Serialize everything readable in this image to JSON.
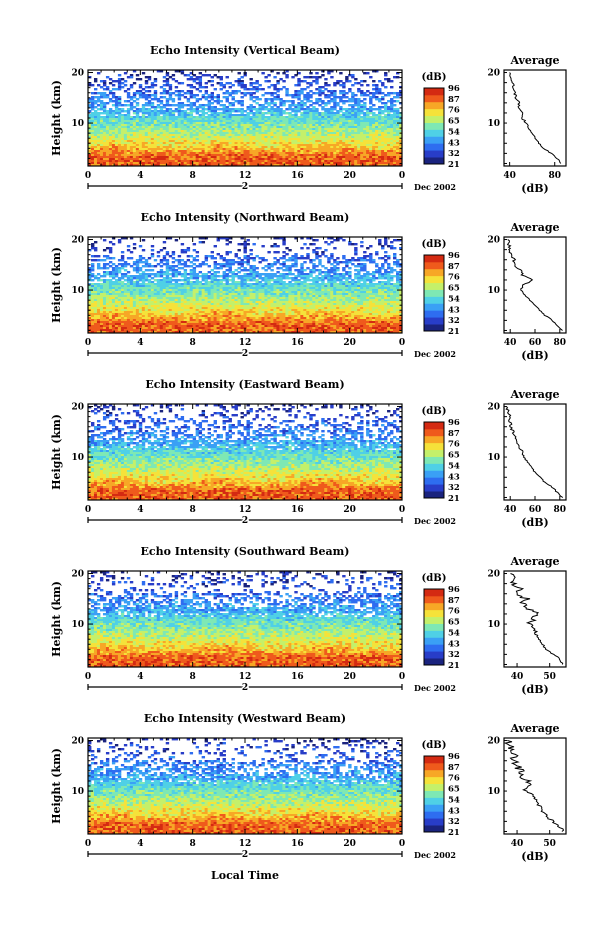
{
  "figure": {
    "xlabel": "Local Time",
    "date_label": "Dec 2002",
    "colorbar_unit": "(dB)",
    "colorbar_ticks": [
      "96",
      "87",
      "76",
      "65",
      "54",
      "43",
      "32",
      "21"
    ],
    "avg_title": "Average",
    "avg_xlabel": "(dB)",
    "ylabel": "Height (km)",
    "day_marker": "2",
    "colormap": [
      "#1a237e",
      "#283dc8",
      "#2e6df0",
      "#3aa0f5",
      "#4fd0e6",
      "#7ee8b4",
      "#c4f06a",
      "#f5e23a",
      "#f7a726",
      "#ef5a1c",
      "#d42a12"
    ]
  },
  "chart_data": [
    {
      "type": "heatmap",
      "title": "Echo Intensity (Vertical Beam)",
      "x_ticks": [
        "0",
        "4",
        "8",
        "12",
        "16",
        "20",
        "0"
      ],
      "xlim_hours": [
        0,
        24
      ],
      "y_ticks": [
        "20",
        "10"
      ],
      "ylim_km": [
        1.5,
        20.5
      ],
      "colorbar_range_db": [
        21,
        96
      ],
      "average_profile": {
        "title": "Average",
        "x_ticks": [
          "40",
          "80"
        ],
        "xlim_db": [
          35,
          90
        ],
        "y_ticks": [
          "20",
          "10"
        ],
        "points": [
          [
            2,
            86
          ],
          [
            3,
            82
          ],
          [
            4,
            77
          ],
          [
            5,
            70
          ],
          [
            6,
            66
          ],
          [
            7,
            63
          ],
          [
            8,
            60
          ],
          [
            9,
            57
          ],
          [
            10,
            55
          ],
          [
            11,
            51
          ],
          [
            12,
            52
          ],
          [
            13,
            48
          ],
          [
            14,
            48
          ],
          [
            15,
            46
          ],
          [
            16,
            44
          ],
          [
            17,
            44
          ],
          [
            18,
            42
          ],
          [
            19,
            41
          ],
          [
            20,
            40
          ]
        ]
      }
    },
    {
      "type": "heatmap",
      "title": "Echo Intensity (Northward Beam)",
      "x_ticks": [
        "0",
        "4",
        "8",
        "12",
        "16",
        "20",
        "0"
      ],
      "xlim_hours": [
        0,
        24
      ],
      "y_ticks": [
        "20",
        "10"
      ],
      "ylim_km": [
        1.5,
        20.5
      ],
      "colorbar_range_db": [
        21,
        96
      ],
      "average_profile": {
        "title": "Average",
        "x_ticks": [
          "40",
          "60",
          "80"
        ],
        "xlim_db": [
          35,
          85
        ],
        "y_ticks": [
          "20",
          "10"
        ],
        "points": [
          [
            2,
            82
          ],
          [
            3,
            78
          ],
          [
            4,
            74
          ],
          [
            5,
            68
          ],
          [
            6,
            64
          ],
          [
            7,
            60
          ],
          [
            8,
            56
          ],
          [
            9,
            52
          ],
          [
            10,
            49
          ],
          [
            11,
            51
          ],
          [
            12,
            58
          ],
          [
            13,
            50
          ],
          [
            14,
            48
          ],
          [
            15,
            43
          ],
          [
            16,
            43
          ],
          [
            17,
            40
          ],
          [
            18,
            40
          ],
          [
            19,
            39
          ],
          [
            20,
            38
          ]
        ]
      }
    },
    {
      "type": "heatmap",
      "title": "Echo Intensity (Eastward Beam)",
      "x_ticks": [
        "0",
        "4",
        "8",
        "12",
        "16",
        "20",
        "0"
      ],
      "xlim_hours": [
        0,
        24
      ],
      "y_ticks": [
        "20",
        "10"
      ],
      "ylim_km": [
        1.5,
        20.5
      ],
      "colorbar_range_db": [
        21,
        96
      ],
      "average_profile": {
        "title": "Average",
        "x_ticks": [
          "40",
          "60",
          "80"
        ],
        "xlim_db": [
          35,
          85
        ],
        "y_ticks": [
          "20",
          "10"
        ],
        "points": [
          [
            2,
            82
          ],
          [
            3,
            78
          ],
          [
            4,
            74
          ],
          [
            5,
            68
          ],
          [
            6,
            64
          ],
          [
            7,
            60
          ],
          [
            8,
            57
          ],
          [
            9,
            54
          ],
          [
            10,
            51
          ],
          [
            11,
            50
          ],
          [
            12,
            47
          ],
          [
            13,
            45
          ],
          [
            14,
            44
          ],
          [
            15,
            42
          ],
          [
            16,
            41
          ],
          [
            17,
            40
          ],
          [
            18,
            40
          ],
          [
            19,
            38
          ],
          [
            20,
            37
          ]
        ]
      }
    },
    {
      "type": "heatmap",
      "title": "Echo Intensity (Southward Beam)",
      "x_ticks": [
        "0",
        "4",
        "8",
        "12",
        "16",
        "20",
        "0"
      ],
      "xlim_hours": [
        0,
        24
      ],
      "y_ticks": [
        "20",
        "10"
      ],
      "ylim_km": [
        1.5,
        20.5
      ],
      "colorbar_range_db": [
        21,
        96
      ],
      "average_profile": {
        "title": "Average",
        "x_ticks": [
          "40",
          "50"
        ],
        "xlim_db": [
          36,
          55
        ],
        "y_ticks": [
          "20",
          "10"
        ],
        "points": [
          [
            2,
            54
          ],
          [
            3,
            53
          ],
          [
            4,
            51
          ],
          [
            5,
            49
          ],
          [
            6,
            48
          ],
          [
            7,
            47
          ],
          [
            8,
            46
          ],
          [
            9,
            45
          ],
          [
            10,
            44
          ],
          [
            11,
            45
          ],
          [
            12,
            46
          ],
          [
            13,
            44
          ],
          [
            14,
            42
          ],
          [
            15,
            43
          ],
          [
            16,
            40
          ],
          [
            17,
            41
          ],
          [
            18,
            39
          ],
          [
            19,
            39
          ],
          [
            20,
            38
          ]
        ]
      }
    },
    {
      "type": "heatmap",
      "title": "Echo Intensity (Westward Beam)",
      "x_ticks": [
        "0",
        "4",
        "8",
        "12",
        "16",
        "20",
        "0"
      ],
      "xlim_hours": [
        0,
        24
      ],
      "y_ticks": [
        "20",
        "10"
      ],
      "ylim_km": [
        1.5,
        20.5
      ],
      "colorbar_range_db": [
        21,
        96
      ],
      "average_profile": {
        "title": "Average",
        "x_ticks": [
          "40",
          "50"
        ],
        "xlim_db": [
          36,
          55
        ],
        "y_ticks": [
          "20",
          "10"
        ],
        "points": [
          [
            2,
            54
          ],
          [
            3,
            53
          ],
          [
            4,
            51
          ],
          [
            5,
            49
          ],
          [
            6,
            48
          ],
          [
            7,
            47
          ],
          [
            8,
            46
          ],
          [
            9,
            45
          ],
          [
            10,
            43
          ],
          [
            11,
            43
          ],
          [
            12,
            44
          ],
          [
            13,
            41
          ],
          [
            14,
            41
          ],
          [
            15,
            40
          ],
          [
            16,
            39
          ],
          [
            17,
            39
          ],
          [
            18,
            38
          ],
          [
            19,
            38
          ],
          [
            20,
            37
          ]
        ]
      }
    }
  ]
}
